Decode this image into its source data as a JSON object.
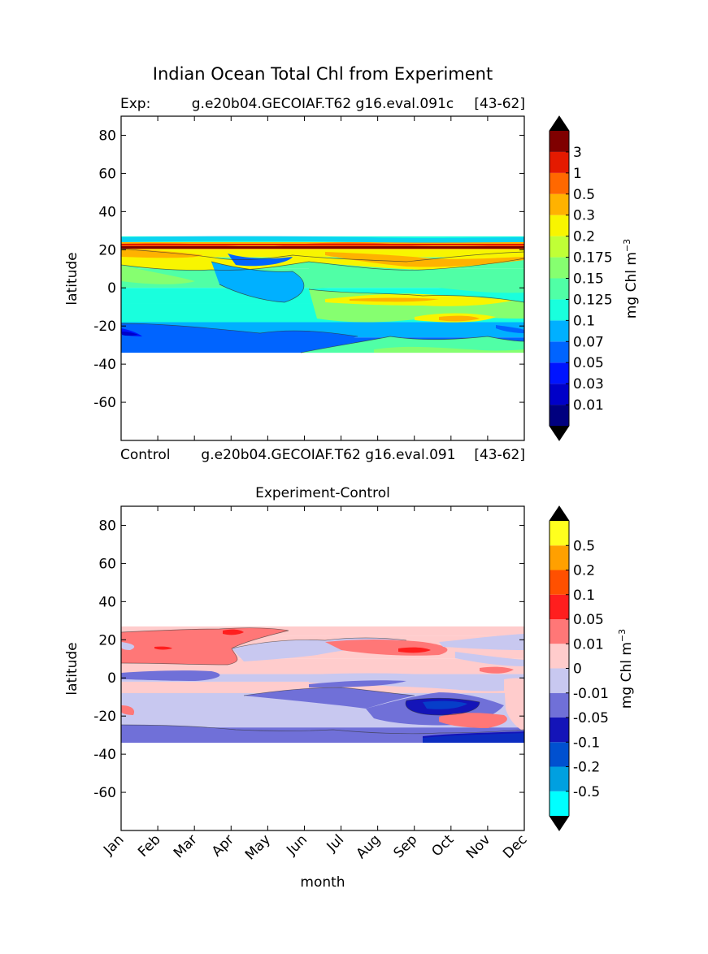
{
  "figure": {
    "suptitle": "Indian Ocean Total Chl from Experiment"
  },
  "chart_data": [
    {
      "type": "contour",
      "title_left": "Exp:",
      "title_center": "g.e20b04.GECOIAF.T62 g16.eval.091c",
      "title_right": "[43-62]",
      "bottom_left": "Control",
      "bottom_center": "g.e20b04.GECOIAF.T62 g16.eval.091",
      "bottom_right": "[43-62]",
      "ylabel": "latitude",
      "xlabel": "",
      "ylim": [
        -80,
        90
      ],
      "yticks": [
        "80",
        "60",
        "40",
        "20",
        "0",
        "-20",
        "-40",
        "-60"
      ],
      "ytick_values": [
        80,
        60,
        40,
        20,
        0,
        -20,
        -40,
        -60
      ],
      "data_lat_range": [
        -34,
        27
      ],
      "colorbar": {
        "label": "mg Chl m",
        "label_sup": "−3",
        "levels": [
          "0.01",
          "0.03",
          "0.05",
          "0.07",
          "0.1",
          "0.125",
          "0.15",
          "0.175",
          "0.2",
          "0.3",
          "0.5",
          "1",
          "3"
        ],
        "colors": [
          "#00007f",
          "#0000c8",
          "#0014ff",
          "#0064ff",
          "#00b0ff",
          "#19ffdd",
          "#50ffa6",
          "#86ff70",
          "#c0ff36",
          "#f8f500",
          "#ffb200",
          "#ff6800",
          "#e41a00",
          "#7f0000"
        ],
        "under_color": "#000000",
        "over_color": "#000000"
      },
      "bands": [
        {
          "lat_from": 27,
          "lat_to": 24,
          "color": "#19ffdd"
        },
        {
          "lat_from": 24,
          "lat_to": 20,
          "color": "#ffb200"
        },
        {
          "lat_from": 20,
          "lat_to": 16,
          "color": "#f8f500"
        },
        {
          "lat_from": 16,
          "lat_to": 10,
          "color": "#50ffa6"
        },
        {
          "lat_from": 10,
          "lat_to": 0,
          "color": "#50ffa6"
        },
        {
          "lat_from": 0,
          "lat_to": -8,
          "color": "#19ffdd"
        },
        {
          "lat_from": -8,
          "lat_to": -18,
          "color": "#19ffdd"
        },
        {
          "lat_from": -18,
          "lat_to": -26,
          "color": "#00b0ff"
        },
        {
          "lat_from": -26,
          "lat_to": -34,
          "color": "#0064ff"
        }
      ]
    },
    {
      "type": "contour",
      "title": "Experiment-Control",
      "ylabel": "latitude",
      "xlabel": "month",
      "ylim": [
        -80,
        90
      ],
      "yticks": [
        "80",
        "60",
        "40",
        "20",
        "0",
        "-20",
        "-40",
        "-60"
      ],
      "ytick_values": [
        80,
        60,
        40,
        20,
        0,
        -20,
        -40,
        -60
      ],
      "categories": [
        "Jan",
        "Feb",
        "Mar",
        "Apr",
        "May",
        "Jun",
        "Jul",
        "Aug",
        "Sep",
        "Oct",
        "Nov",
        "Dec"
      ],
      "data_lat_range": [
        -34,
        27
      ],
      "colorbar": {
        "label": "mg Chl m",
        "label_sup": "−3",
        "levels": [
          "-0.5",
          "-0.2",
          "-0.1",
          "-0.05",
          "-0.01",
          "0",
          "0.01",
          "0.05",
          "0.1",
          "0.2",
          "0.5"
        ],
        "colors": [
          "#00ffff",
          "#00a0e0",
          "#0050d0",
          "#1414b8",
          "#7070d8",
          "#c8c8f0",
          "#ffcccc",
          "#ff7777",
          "#ff1e1e",
          "#ff5000",
          "#ffa000",
          "#ffff1e"
        ],
        "under_color": "#000000",
        "over_color": "#000000"
      },
      "bands": [
        {
          "lat_from": 27,
          "lat_to": 22,
          "color": "#ffcccc"
        },
        {
          "lat_from": 22,
          "lat_to": 10,
          "color": "#ffcccc"
        },
        {
          "lat_from": 10,
          "lat_to": 2,
          "color": "#ffcccc"
        },
        {
          "lat_from": 2,
          "lat_to": -2,
          "color": "#c8c8f0"
        },
        {
          "lat_from": -2,
          "lat_to": -8,
          "color": "#ffcccc"
        },
        {
          "lat_from": -8,
          "lat_to": -26,
          "color": "#c8c8f0"
        },
        {
          "lat_from": -26,
          "lat_to": -34,
          "color": "#7070d8"
        }
      ]
    }
  ]
}
